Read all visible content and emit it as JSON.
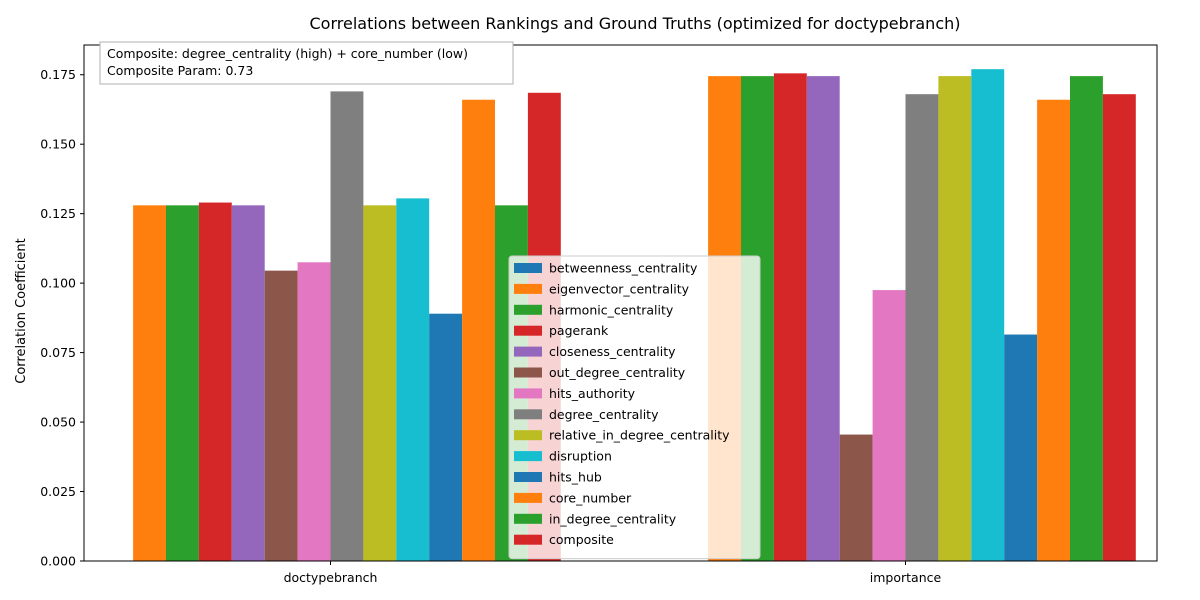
{
  "chart_data": {
    "type": "bar",
    "title": "Correlations between Rankings and Ground Truths (optimized for doctypebranch)",
    "xlabel": "",
    "ylabel": "Correlation Coefficient",
    "ylim": [
      0,
      0.1857
    ],
    "yticks": [
      "0.000",
      "0.025",
      "0.050",
      "0.075",
      "0.100",
      "0.125",
      "0.150",
      "0.175"
    ],
    "categories": [
      "doctypebranch",
      "importance"
    ],
    "grid": false,
    "legend_position": "lower-center",
    "annotation": [
      "Composite: degree_centrality (high) + core_number (low)",
      "Composite Param: 0.73"
    ],
    "series": [
      {
        "name": "betweenness_centrality",
        "color": "#1f77b4",
        "values": [
          0.0,
          0.0
        ]
      },
      {
        "name": "eigenvector_centrality",
        "color": "#ff7f0e",
        "values": [
          0.128,
          0.1745
        ]
      },
      {
        "name": "harmonic_centrality",
        "color": "#2ca02c",
        "values": [
          0.128,
          0.1745
        ]
      },
      {
        "name": "pagerank",
        "color": "#d62728",
        "values": [
          0.129,
          0.1755
        ]
      },
      {
        "name": "closeness_centrality",
        "color": "#9467bd",
        "values": [
          0.128,
          0.1745
        ]
      },
      {
        "name": "out_degree_centrality",
        "color": "#8c564b",
        "values": [
          0.1045,
          0.0455
        ]
      },
      {
        "name": "hits_authority",
        "color": "#e377c2",
        "values": [
          0.1075,
          0.0975
        ]
      },
      {
        "name": "degree_centrality",
        "color": "#7f7f7f",
        "values": [
          0.169,
          0.168
        ]
      },
      {
        "name": "relative_in_degree_centrality",
        "color": "#bcbd22",
        "values": [
          0.128,
          0.1745
        ]
      },
      {
        "name": "disruption",
        "color": "#17becf",
        "values": [
          0.1305,
          0.177
        ]
      },
      {
        "name": "hits_hub",
        "color": "#1f77b4",
        "values": [
          0.089,
          0.0815
        ]
      },
      {
        "name": "core_number",
        "color": "#ff7f0e",
        "values": [
          0.166,
          0.166
        ]
      },
      {
        "name": "in_degree_centrality",
        "color": "#2ca02c",
        "values": [
          0.128,
          0.1745
        ]
      },
      {
        "name": "composite",
        "color": "#d62728",
        "values": [
          0.1685,
          0.168
        ]
      }
    ]
  }
}
